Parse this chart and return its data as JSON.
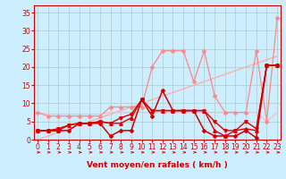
{
  "xlabel": "Vent moyen/en rafales ( km/h )",
  "background_color": "#cceeff",
  "grid_color": "#aacccc",
  "x": [
    0,
    1,
    2,
    3,
    4,
    5,
    6,
    7,
    8,
    9,
    10,
    11,
    12,
    13,
    14,
    15,
    16,
    17,
    18,
    19,
    20,
    21,
    22,
    23
  ],
  "ylim": [
    0,
    37
  ],
  "xlim": [
    -0.3,
    23.3
  ],
  "line_diagonal": {
    "y": [
      0,
      1,
      2,
      3,
      4,
      5,
      6,
      7,
      8,
      9,
      10,
      11,
      12,
      13,
      14,
      15,
      16,
      17,
      18,
      19,
      20,
      21,
      22,
      23
    ],
    "color": "#ffaaaa",
    "linewidth": 0.9
  },
  "line_flat": {
    "y": [
      7.5,
      7,
      7,
      7,
      7,
      7,
      7,
      7.5,
      7.5,
      7.5,
      7.5,
      7.5,
      7.5,
      7.5,
      7.5,
      7.5,
      7.5,
      7.5,
      7.5,
      7.5,
      7.5,
      7.5,
      5,
      7.5
    ],
    "color": "#ffbbbb",
    "linewidth": 0.9
  },
  "line_upper_pink": {
    "y": [
      7.5,
      6.5,
      6.5,
      6.5,
      6.5,
      6.5,
      6.5,
      9,
      9,
      9,
      9,
      20,
      24.5,
      24.5,
      24.5,
      16,
      24.5,
      12,
      7.5,
      7.5,
      7.5,
      24.5,
      5,
      33.5
    ],
    "color": "#ff8888",
    "marker": "D",
    "markersize": 2.0,
    "linewidth": 0.9
  },
  "line_red1": {
    "y": [
      2.5,
      2.5,
      3,
      4,
      4.5,
      4.5,
      5,
      4.5,
      6,
      7,
      11,
      8,
      8,
      8,
      8,
      8,
      8,
      5,
      2.5,
      2.5,
      5,
      3,
      20.5,
      20.5
    ],
    "color": "#dd0000",
    "marker": "v",
    "markersize": 2.5,
    "linewidth": 1.0
  },
  "line_red2": {
    "y": [
      2.5,
      2.5,
      2.5,
      4,
      4.5,
      4.5,
      5,
      4.5,
      4.5,
      6,
      11,
      8,
      8,
      8,
      8,
      8,
      8,
      2.5,
      1,
      2.5,
      3,
      2.5,
      20.5,
      20.5
    ],
    "color": "#dd0000",
    "marker": "^",
    "markersize": 2.5,
    "linewidth": 1.0
  },
  "line_red3": {
    "y": [
      2.5,
      2.5,
      2.5,
      2.5,
      4.5,
      4.5,
      4.5,
      1,
      2.5,
      2.5,
      11,
      6.5,
      13.5,
      8,
      8,
      8,
      2.5,
      1,
      1,
      1,
      2.5,
      0.5,
      20.5,
      20.5
    ],
    "color": "#cc0000",
    "marker": "D",
    "markersize": 2.0,
    "linewidth": 1.1
  },
  "tick_color": "#cc0000",
  "tick_fontsize": 5.5,
  "xlabel_fontsize": 6.5,
  "spine_color": "#cc0000",
  "arrow_color": "#cc0000"
}
